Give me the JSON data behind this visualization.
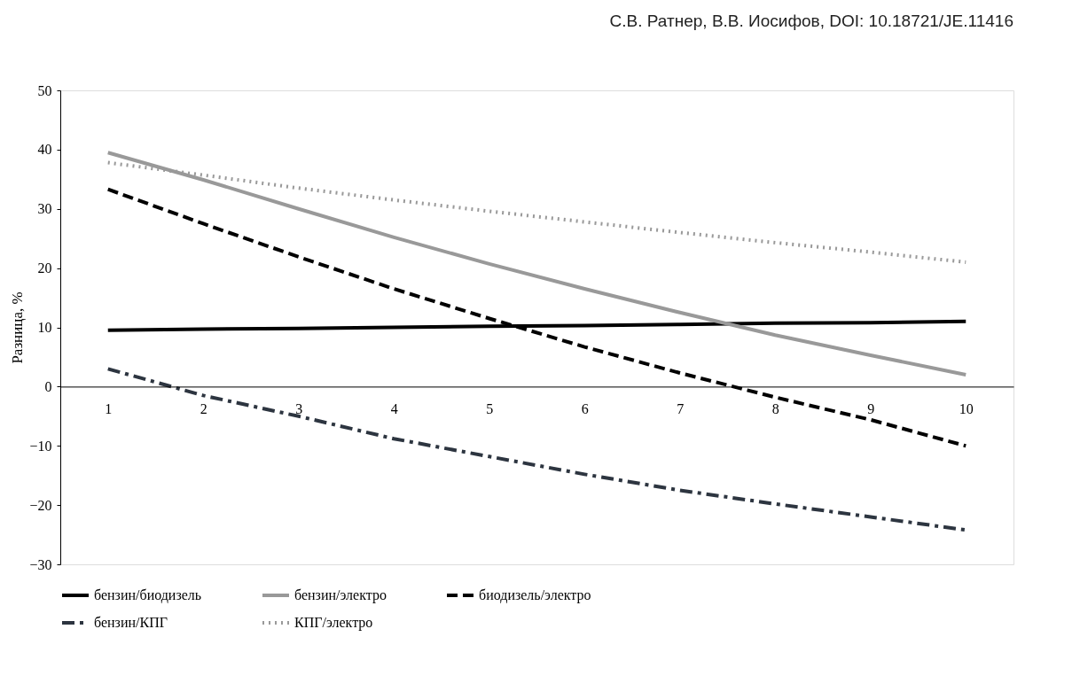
{
  "chart_data": {
    "type": "line",
    "annotations": [
      "С.В. Ратнер, В.В. Иосифов, DOI: 10.18721/JE.11416"
    ],
    "ylabel": "Разница, %",
    "categories": [
      "1",
      "2",
      "3",
      "4",
      "5",
      "6",
      "7",
      "8",
      "9",
      "10"
    ],
    "series": [
      {
        "name": "бензин/биодизель",
        "color": "#000000",
        "line_style": "solid",
        "values": [
          9.5,
          9.7,
          9.8,
          10,
          10.2,
          10.3,
          10.5,
          10.7,
          10.8,
          11
        ]
      },
      {
        "name": "бензин/электро",
        "color": "#999999",
        "line_style": "solid",
        "values": [
          39.5,
          34.9,
          30,
          25.2,
          20.7,
          16.5,
          12.5,
          8.7,
          5.3,
          2
        ]
      },
      {
        "name": "биодизель/электро",
        "color": "#000000",
        "line_style": "dashed",
        "values": [
          33.3,
          27.5,
          21.9,
          16.5,
          11.5,
          6.7,
          2.3,
          -1.8,
          -5.6,
          -10
        ]
      },
      {
        "name": "бензин/КПГ",
        "color": "#2d3540",
        "line_style": "dashdot",
        "values": [
          3,
          -1.5,
          -5,
          -8.8,
          -11.8,
          -14.8,
          -17.5,
          -19.8,
          -22,
          -24.2
        ]
      },
      {
        "name": "КПГ/электро",
        "color": "#999999",
        "line_style": "dotted",
        "values": [
          37.8,
          35.7,
          33.5,
          31.5,
          29.6,
          27.8,
          26,
          24.3,
          22.7,
          21
        ]
      }
    ],
    "ylim": [
      -30,
      50
    ],
    "yticks": [
      -30,
      -20,
      -10,
      0,
      10,
      20,
      30,
      40,
      50
    ],
    "grid": false,
    "legend": "bottom",
    "marker": "none"
  }
}
